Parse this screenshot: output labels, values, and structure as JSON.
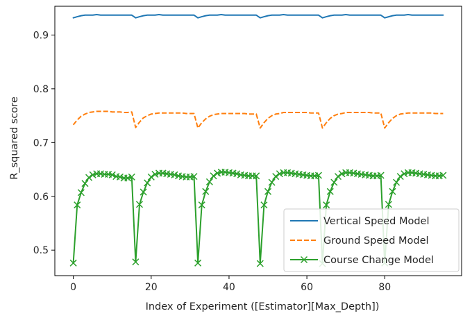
{
  "chart_data": {
    "type": "line",
    "title": "",
    "xlabel": "Index of Experiment ([Estimator][Max_Depth])",
    "ylabel": "R_squared score",
    "xlim": [
      -4.75,
      99.75
    ],
    "ylim": [
      0.4525,
      0.9535
    ],
    "xticks": [
      0,
      20,
      40,
      60,
      80
    ],
    "yticks": [
      0.5,
      0.6,
      0.7,
      0.8,
      0.9
    ],
    "grid": false,
    "legend_position": "lower-right",
    "x": [
      0,
      1,
      2,
      3,
      4,
      5,
      6,
      7,
      8,
      9,
      10,
      11,
      12,
      13,
      14,
      15,
      16,
      17,
      18,
      19,
      20,
      21,
      22,
      23,
      24,
      25,
      26,
      27,
      28,
      29,
      30,
      31,
      32,
      33,
      34,
      35,
      36,
      37,
      38,
      39,
      40,
      41,
      42,
      43,
      44,
      45,
      46,
      47,
      48,
      49,
      50,
      51,
      52,
      53,
      54,
      55,
      56,
      57,
      58,
      59,
      60,
      61,
      62,
      63,
      64,
      65,
      66,
      67,
      68,
      69,
      70,
      71,
      72,
      73,
      74,
      75,
      76,
      77,
      78,
      79,
      80,
      81,
      82,
      83,
      84,
      85,
      86,
      87,
      88,
      89,
      90,
      91,
      92,
      93,
      94,
      95
    ],
    "series": [
      {
        "name": "Vertical Speed Model",
        "color": "#1f77b4",
        "style": "solid",
        "marker": "none",
        "values": [
          0.932,
          0.934,
          0.936,
          0.937,
          0.937,
          0.937,
          0.938,
          0.937,
          0.937,
          0.937,
          0.937,
          0.937,
          0.937,
          0.937,
          0.937,
          0.937,
          0.932,
          0.934,
          0.936,
          0.937,
          0.937,
          0.937,
          0.938,
          0.937,
          0.937,
          0.937,
          0.937,
          0.937,
          0.937,
          0.937,
          0.937,
          0.937,
          0.932,
          0.934,
          0.936,
          0.937,
          0.937,
          0.937,
          0.938,
          0.937,
          0.937,
          0.937,
          0.937,
          0.937,
          0.937,
          0.937,
          0.937,
          0.937,
          0.932,
          0.934,
          0.936,
          0.937,
          0.937,
          0.937,
          0.938,
          0.937,
          0.937,
          0.937,
          0.937,
          0.937,
          0.937,
          0.937,
          0.937,
          0.937,
          0.932,
          0.934,
          0.936,
          0.937,
          0.937,
          0.937,
          0.938,
          0.937,
          0.937,
          0.937,
          0.937,
          0.937,
          0.937,
          0.937,
          0.937,
          0.937,
          0.932,
          0.934,
          0.936,
          0.937,
          0.937,
          0.937,
          0.938,
          0.937,
          0.937,
          0.937,
          0.937,
          0.937,
          0.937,
          0.937,
          0.937,
          0.937
        ]
      },
      {
        "name": "Ground Speed Model",
        "color": "#ff7f0e",
        "style": "dashed",
        "marker": "none",
        "values": [
          0.733,
          0.742,
          0.749,
          0.753,
          0.756,
          0.757,
          0.758,
          0.758,
          0.758,
          0.758,
          0.757,
          0.757,
          0.757,
          0.756,
          0.756,
          0.757,
          0.728,
          0.738,
          0.746,
          0.75,
          0.753,
          0.754,
          0.755,
          0.755,
          0.755,
          0.755,
          0.755,
          0.755,
          0.755,
          0.754,
          0.754,
          0.754,
          0.727,
          0.737,
          0.744,
          0.749,
          0.752,
          0.753,
          0.754,
          0.754,
          0.754,
          0.754,
          0.754,
          0.754,
          0.754,
          0.753,
          0.753,
          0.753,
          0.727,
          0.737,
          0.745,
          0.75,
          0.753,
          0.754,
          0.756,
          0.756,
          0.756,
          0.756,
          0.756,
          0.756,
          0.756,
          0.755,
          0.755,
          0.755,
          0.727,
          0.737,
          0.745,
          0.75,
          0.753,
          0.754,
          0.756,
          0.756,
          0.756,
          0.756,
          0.756,
          0.756,
          0.756,
          0.755,
          0.755,
          0.755,
          0.727,
          0.737,
          0.745,
          0.75,
          0.753,
          0.754,
          0.755,
          0.755,
          0.755,
          0.755,
          0.755,
          0.755,
          0.755,
          0.754,
          0.754,
          0.754
        ]
      },
      {
        "name": "Course Change Model",
        "color": "#2ca02c",
        "style": "solid",
        "marker": "x",
        "values": [
          0.476,
          0.584,
          0.607,
          0.624,
          0.635,
          0.64,
          0.642,
          0.642,
          0.641,
          0.641,
          0.64,
          0.637,
          0.636,
          0.634,
          0.634,
          0.636,
          0.478,
          0.585,
          0.608,
          0.625,
          0.636,
          0.641,
          0.643,
          0.643,
          0.642,
          0.641,
          0.64,
          0.638,
          0.637,
          0.636,
          0.636,
          0.637,
          0.476,
          0.584,
          0.609,
          0.627,
          0.638,
          0.643,
          0.645,
          0.645,
          0.644,
          0.643,
          0.642,
          0.64,
          0.639,
          0.638,
          0.638,
          0.638,
          0.475,
          0.584,
          0.609,
          0.626,
          0.637,
          0.642,
          0.644,
          0.644,
          0.643,
          0.642,
          0.641,
          0.64,
          0.639,
          0.638,
          0.638,
          0.639,
          0.475,
          0.584,
          0.609,
          0.626,
          0.637,
          0.642,
          0.644,
          0.644,
          0.643,
          0.642,
          0.641,
          0.64,
          0.639,
          0.638,
          0.638,
          0.639,
          0.476,
          0.585,
          0.609,
          0.626,
          0.637,
          0.642,
          0.644,
          0.644,
          0.643,
          0.642,
          0.641,
          0.64,
          0.639,
          0.638,
          0.638,
          0.639
        ]
      }
    ]
  }
}
